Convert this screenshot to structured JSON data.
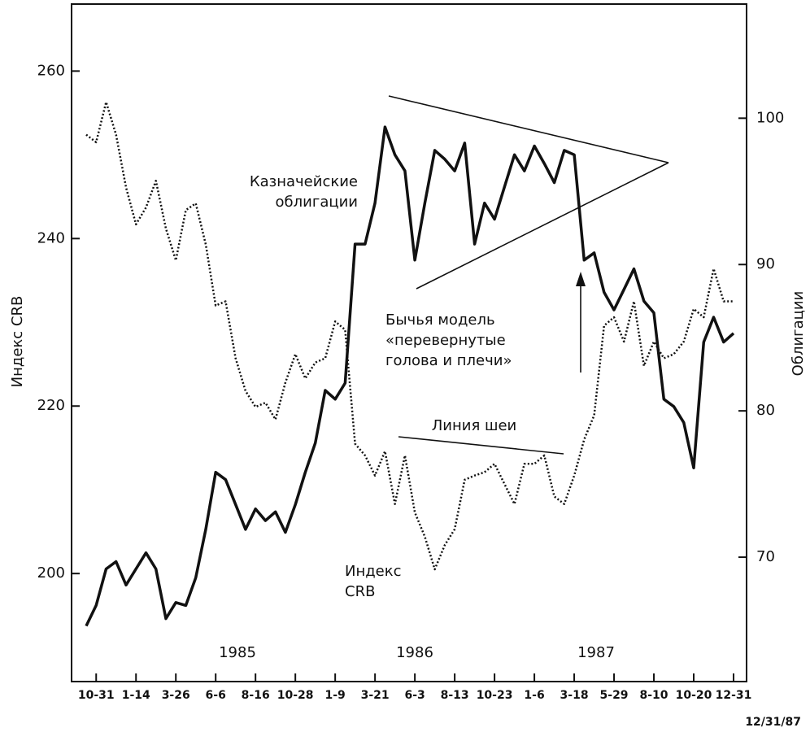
{
  "chart_data": {
    "type": "line",
    "ylabel": "Индекс CRB",
    "y2label": "Облигации",
    "categories": [
      null,
      "10-31",
      null,
      null,
      null,
      "1-14",
      null,
      null,
      null,
      "3-26",
      null,
      null,
      null,
      "6-6",
      null,
      null,
      null,
      "8-16",
      null,
      null,
      null,
      "10-28",
      null,
      null,
      null,
      "1-9",
      null,
      null,
      null,
      "3-21",
      null,
      null,
      null,
      "6-3",
      null,
      null,
      null,
      "8-13",
      null,
      null,
      null,
      "10-23",
      null,
      null,
      null,
      "1-6",
      null,
      null,
      null,
      "3-18",
      null,
      null,
      null,
      "5-29",
      null,
      null,
      null,
      "8-10",
      null,
      null,
      null,
      "10-20",
      null,
      null,
      null,
      "12-31"
    ],
    "series": [
      {
        "color": "#111111",
        "dash": "dotted",
        "axis": "y",
        "values": [
          252.4,
          251.5,
          256.3,
          252.4,
          246.1,
          241.7,
          243.7,
          246.9,
          241.2,
          237.4,
          243.4,
          244.2,
          239.3,
          232.0,
          232.5,
          225.7,
          221.8,
          219.9,
          220.4,
          218.4,
          222.8,
          226.2,
          223.3,
          225.2,
          225.7,
          230.1,
          229.1,
          215.5,
          214.1,
          211.7,
          214.6,
          208.3,
          214.1,
          207.3,
          204.4,
          200.5,
          203.4,
          205.3,
          211.2,
          211.7,
          212.1,
          213.1,
          210.7,
          208.3,
          213.1,
          213.1,
          214.1,
          209.2,
          208.3,
          211.7,
          216.0,
          218.9,
          229.6,
          230.6,
          227.7,
          232.5,
          224.8,
          227.7,
          225.7,
          226.2,
          227.7,
          231.6,
          230.6,
          236.4,
          232.5,
          232.5
        ]
      },
      {
        "color": "#111111",
        "dash": "solid",
        "axis": "y2",
        "values": [
          65.3,
          66.7,
          69.2,
          69.7,
          68.1,
          69.2,
          70.3,
          69.2,
          65.8,
          66.9,
          66.7,
          68.6,
          71.9,
          75.8,
          75.3,
          73.6,
          71.9,
          73.3,
          72.5,
          73.1,
          71.7,
          73.6,
          75.8,
          77.8,
          81.4,
          80.8,
          81.9,
          91.4,
          91.4,
          94.2,
          99.4,
          97.5,
          96.4,
          90.3,
          94.2,
          97.8,
          97.2,
          96.4,
          98.3,
          91.4,
          94.2,
          93.1,
          95.3,
          97.5,
          96.4,
          98.1,
          96.9,
          95.6,
          97.8,
          97.5,
          90.3,
          90.8,
          88.1,
          86.9,
          88.3,
          89.7,
          87.5,
          86.7,
          80.8,
          80.3,
          79.2,
          76.1,
          84.7,
          86.4,
          84.7,
          85.3
        ]
      }
    ],
    "ylim": [
      187.1,
      268
    ],
    "yticks": [
      200,
      220,
      240,
      260
    ],
    "y2lim": [
      61.5,
      107.8
    ],
    "y2ticks": [
      70,
      80,
      90,
      100
    ],
    "years": [
      "1985",
      "1986",
      "1987"
    ],
    "end_date": "12/31/87",
    "annotations": {
      "bonds": [
        "Казначейские",
        "облигации"
      ],
      "pattern": [
        "Бычья модель",
        "«перевернутые",
        "голова и плечи»"
      ],
      "neckline": "Линия шеи",
      "crb": [
        "Индекс",
        "CRB"
      ]
    }
  }
}
